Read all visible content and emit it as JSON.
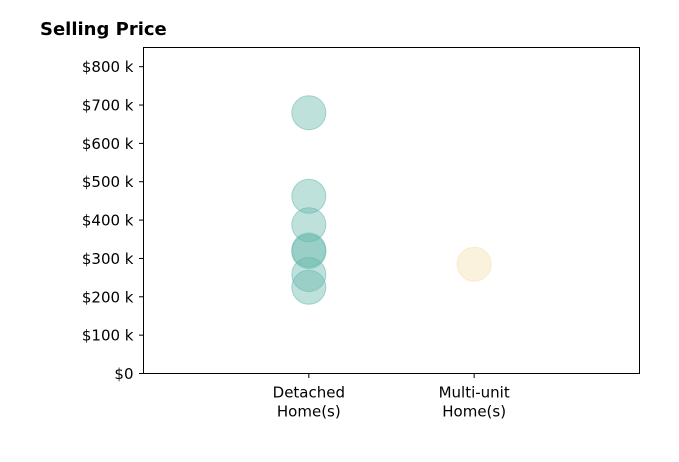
{
  "chart_data": {
    "type": "scatter",
    "title": "Selling Price",
    "xlabel": "",
    "ylabel": "",
    "categories": [
      "Detached\nHome(s)",
      "Multi-unit\nHome(s)"
    ],
    "x_range": [
      0,
      3
    ],
    "category_positions": [
      1,
      2
    ],
    "ylim": [
      0,
      850000
    ],
    "y_ticks": [
      0,
      100000,
      200000,
      300000,
      400000,
      500000,
      600000,
      700000,
      800000
    ],
    "y_tick_labels": [
      "$0",
      "$100 k",
      "$200 k",
      "$300 k",
      "$400 k",
      "$500 k",
      "$600 k",
      "$700 k",
      "$800 k"
    ],
    "grid": false,
    "legend": "none",
    "series": [
      {
        "category": "Detached\nHome(s)",
        "color": "#66b8ac",
        "values": [
          680000,
          462000,
          388000,
          322000,
          318000,
          258000,
          225000
        ]
      },
      {
        "category": "Multi-unit\nHome(s)",
        "color": "#f5dfb0",
        "values": [
          285000
        ]
      }
    ]
  }
}
